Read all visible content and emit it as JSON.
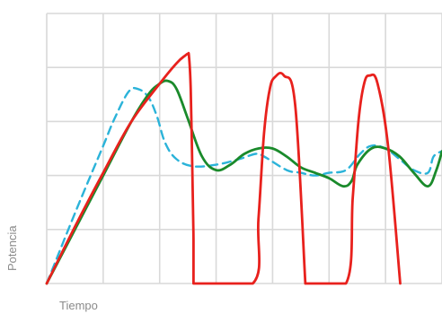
{
  "chart_data": {
    "type": "line",
    "title": "",
    "xlabel": "Tiempo",
    "ylabel": "Potencia",
    "grid": true,
    "xlim": [
      0,
      7
    ],
    "ylim": [
      0,
      5
    ],
    "legend": "none",
    "series": [
      {
        "color": "#e8211d",
        "style": "solid",
        "x": [
          0,
          0.5,
          1,
          1.5,
          2,
          2.3,
          2.45,
          2.5,
          2.52,
          2.55,
          2.58,
          2.6,
          2.6,
          3.65,
          3.75,
          3.85,
          3.95,
          4.05,
          4.2,
          4.4,
          4.58,
          4.58,
          5.3,
          5.42,
          5.52,
          5.62,
          5.72,
          5.86,
          6.05,
          6.26,
          6.26
        ],
        "y": [
          0,
          1.05,
          2.05,
          3.0,
          3.7,
          4.08,
          4.22,
          4.25,
          4.2,
          3.6,
          2.0,
          0.8,
          0,
          0,
          1.2,
          2.8,
          3.6,
          3.83,
          3.85,
          3.3,
          0,
          0,
          0,
          1.6,
          3.0,
          3.7,
          3.85,
          3.7,
          2.5,
          0,
          0
        ]
      },
      {
        "color": "#1a8a2b",
        "style": "solid",
        "x": [
          0,
          0.5,
          1,
          1.5,
          1.8,
          2.0,
          2.15,
          2.3,
          2.5,
          2.75,
          3.0,
          3.25,
          3.5,
          3.75,
          4.0,
          4.25,
          4.5,
          4.75,
          5.0,
          5.25,
          5.4,
          5.5,
          5.75,
          6.0,
          6.25,
          6.5,
          6.75,
          6.9,
          7.0
        ],
        "y": [
          0,
          1.0,
          2.0,
          3.0,
          3.5,
          3.7,
          3.75,
          3.6,
          3.05,
          2.35,
          2.1,
          2.2,
          2.4,
          2.5,
          2.5,
          2.35,
          2.15,
          2.05,
          1.95,
          1.8,
          1.9,
          2.2,
          2.5,
          2.5,
          2.35,
          2.05,
          1.8,
          2.1,
          2.45
        ]
      },
      {
        "color": "#2bb3d9",
        "style": "dashed",
        "x": [
          0,
          0.5,
          1,
          1.2,
          1.45,
          1.62,
          1.8,
          1.95,
          2.1,
          2.3,
          2.6,
          3.0,
          3.4,
          3.7,
          3.85,
          4.25,
          4.5,
          4.75,
          5.0,
          5.3,
          5.55,
          5.75,
          6.0,
          6.25,
          6.5,
          6.75,
          6.85,
          7.0
        ],
        "y": [
          0,
          1.3,
          2.55,
          3.05,
          3.55,
          3.6,
          3.45,
          3.1,
          2.6,
          2.3,
          2.17,
          2.2,
          2.3,
          2.4,
          2.35,
          2.1,
          2.05,
          2.0,
          2.05,
          2.1,
          2.4,
          2.55,
          2.5,
          2.3,
          2.1,
          2.05,
          2.35,
          2.45
        ]
      }
    ]
  }
}
